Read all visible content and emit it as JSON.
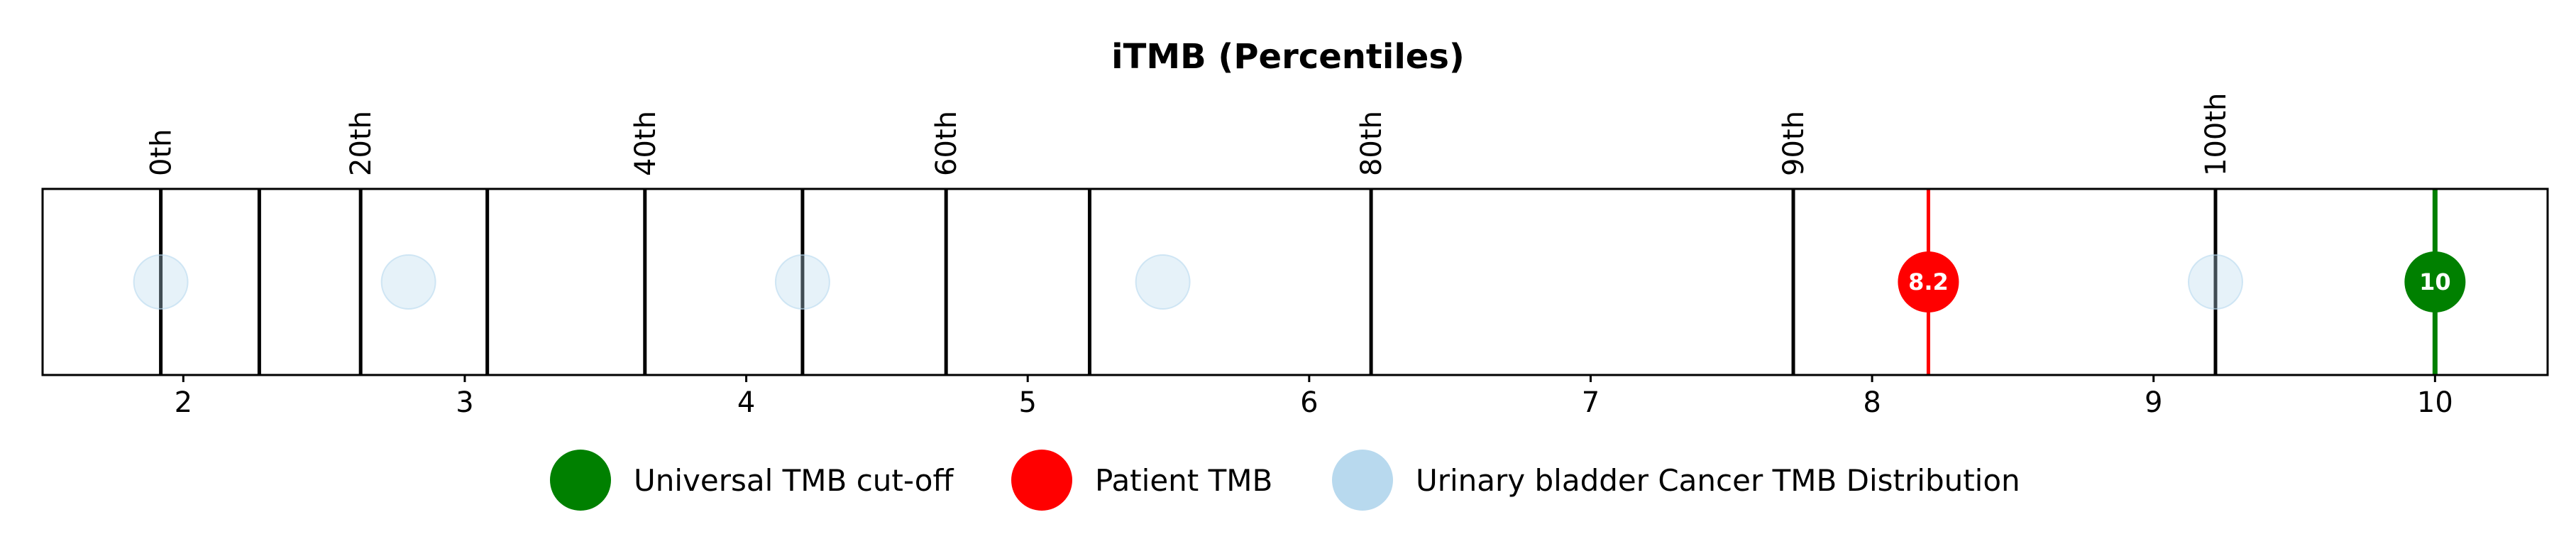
{
  "chart_data": {
    "type": "scatter",
    "title": "iTMB (Percentiles)",
    "xlim": [
      1.5,
      10.4
    ],
    "x_ticks": [
      2,
      3,
      4,
      5,
      6,
      7,
      8,
      9,
      10
    ],
    "grid": false,
    "percentile_markers": [
      {
        "label": "0th",
        "x": 1.92
      },
      {
        "label": "20th",
        "x": 2.63
      },
      {
        "label": "40th",
        "x": 3.64
      },
      {
        "label": "60th",
        "x": 4.71
      },
      {
        "label": "80th",
        "x": 6.22
      },
      {
        "label": "90th",
        "x": 7.72
      },
      {
        "label": "100th",
        "x": 9.22
      }
    ],
    "unlabeled_lines": [
      2.27,
      3.08,
      4.2,
      5.22
    ],
    "distribution": {
      "name": "Urinary bladder Cancer TMB Distribution",
      "color": "#b8d9ee",
      "x": [
        1.92,
        2.8,
        4.2,
        5.48,
        9.22
      ]
    },
    "patient_tmb": {
      "name": "Patient TMB",
      "value": 8.2,
      "label": "8.2",
      "color": "#ff0000"
    },
    "universal_cutoff": {
      "name": "Universal TMB cut-off",
      "value": 10,
      "label": "10",
      "color": "#008000"
    },
    "legend": {
      "placement": "bottom-center",
      "entries": [
        {
          "label": "Universal TMB cut-off",
          "color": "#008000"
        },
        {
          "label": "Patient TMB",
          "color": "#ff0000"
        },
        {
          "label": "Urinary bladder Cancer TMB Distribution",
          "color": "#b8d9ee"
        }
      ]
    }
  }
}
